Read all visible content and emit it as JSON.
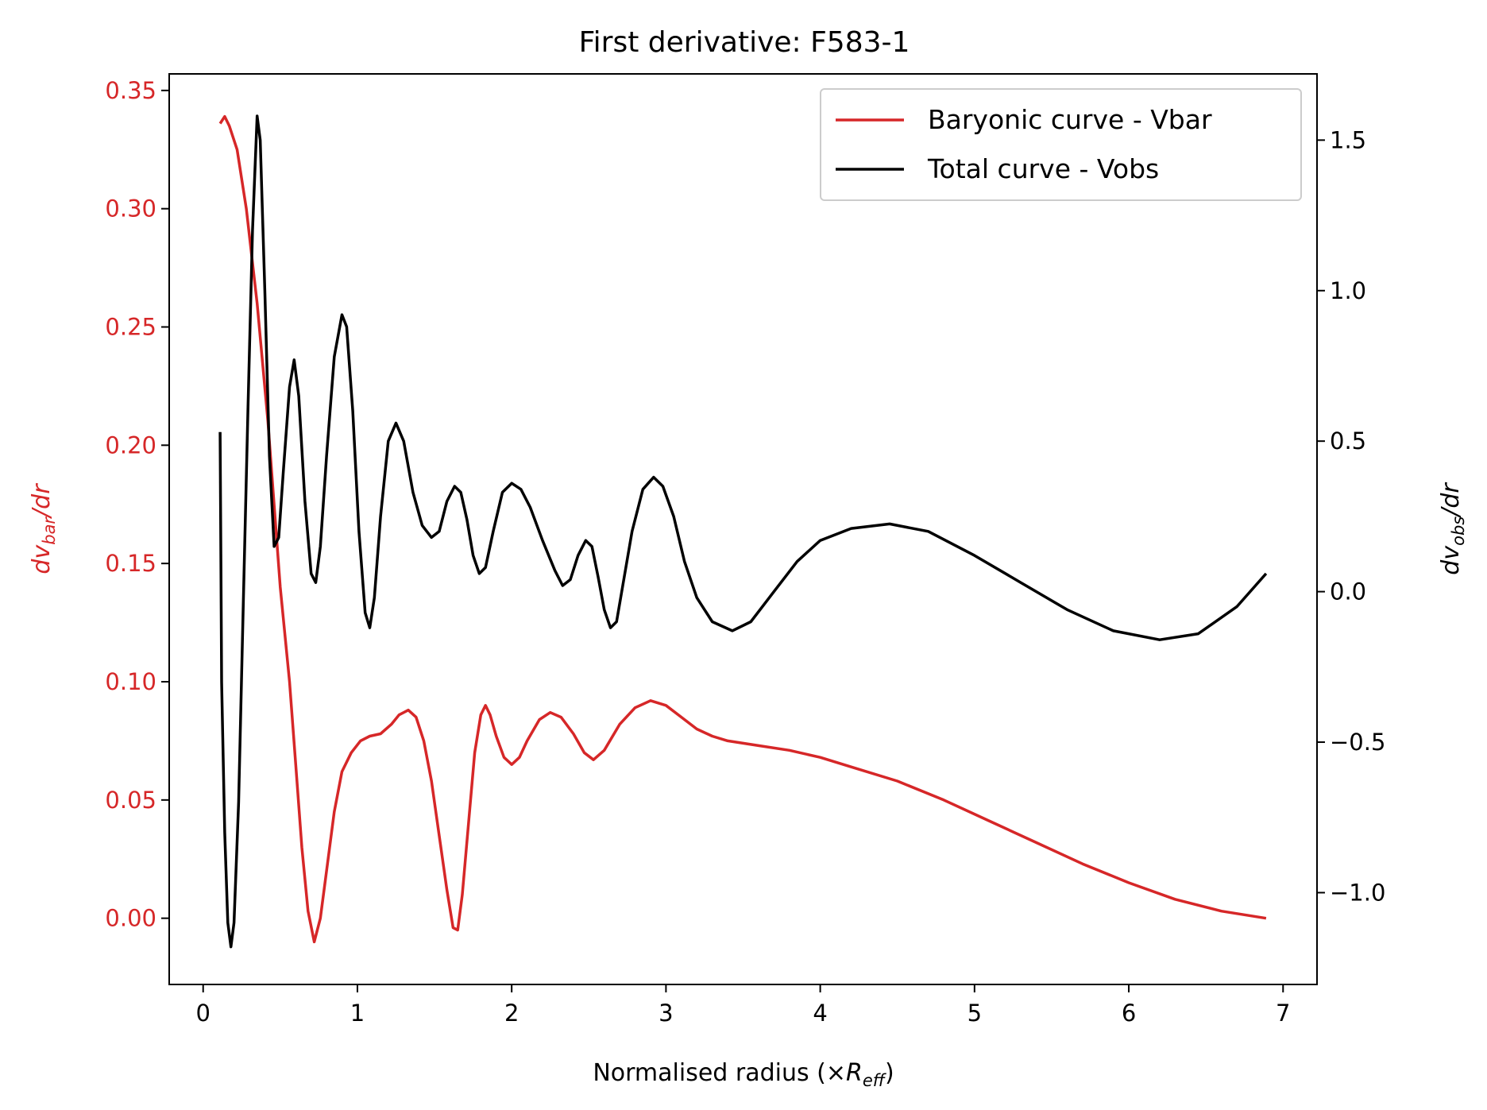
{
  "chart_data": {
    "type": "line",
    "title": "First derivative: F583-1",
    "xlabel": {
      "main": "Normalised radius (×",
      "sym": "R",
      "sub": "eff",
      "end": ")"
    },
    "ylabel_left": {
      "pre": "dv",
      "sub": "bar",
      "post": "/dr"
    },
    "ylabel_right": {
      "pre": "dv",
      "sub": "obs",
      "post": "/dr"
    },
    "xlim": [
      -0.22,
      7.22
    ],
    "ylim_left": [
      -0.028,
      0.357
    ],
    "ylim_right": [
      -1.305,
      1.72
    ],
    "xticks": [
      0,
      1,
      2,
      3,
      4,
      5,
      6,
      7
    ],
    "xtick_labels": [
      "0",
      "1",
      "2",
      "3",
      "4",
      "5",
      "6",
      "7"
    ],
    "yticks_left": [
      0.0,
      0.05,
      0.1,
      0.15,
      0.2,
      0.25,
      0.3,
      0.35
    ],
    "ytick_labels_left": [
      "0.00",
      "0.05",
      "0.10",
      "0.15",
      "0.20",
      "0.25",
      "0.30",
      "0.35"
    ],
    "yticks_right": [
      -1.0,
      -0.5,
      0.0,
      0.5,
      1.0,
      1.5
    ],
    "ytick_labels_right": [
      "−1.0",
      "−0.5",
      "0.0",
      "0.5",
      "1.0",
      "1.5"
    ],
    "grid": false,
    "legend_position": "top-right",
    "colors": {
      "vbar": "#d62728",
      "vobs": "#000000"
    },
    "series": [
      {
        "name": "Baryonic curve - Vbar",
        "axis": "left",
        "color": "#d62728",
        "points": [
          [
            0.11,
            0.336
          ],
          [
            0.14,
            0.339
          ],
          [
            0.17,
            0.335
          ],
          [
            0.22,
            0.325
          ],
          [
            0.28,
            0.3
          ],
          [
            0.35,
            0.26
          ],
          [
            0.42,
            0.21
          ],
          [
            0.5,
            0.14
          ],
          [
            0.56,
            0.1
          ],
          [
            0.6,
            0.065
          ],
          [
            0.64,
            0.03
          ],
          [
            0.68,
            0.003
          ],
          [
            0.72,
            -0.01
          ],
          [
            0.76,
            0.0
          ],
          [
            0.8,
            0.02
          ],
          [
            0.85,
            0.045
          ],
          [
            0.9,
            0.062
          ],
          [
            0.96,
            0.07
          ],
          [
            1.02,
            0.075
          ],
          [
            1.08,
            0.077
          ],
          [
            1.15,
            0.078
          ],
          [
            1.22,
            0.082
          ],
          [
            1.27,
            0.086
          ],
          [
            1.33,
            0.088
          ],
          [
            1.38,
            0.085
          ],
          [
            1.43,
            0.075
          ],
          [
            1.48,
            0.058
          ],
          [
            1.53,
            0.035
          ],
          [
            1.58,
            0.012
          ],
          [
            1.62,
            -0.004
          ],
          [
            1.65,
            -0.005
          ],
          [
            1.68,
            0.01
          ],
          [
            1.72,
            0.04
          ],
          [
            1.76,
            0.07
          ],
          [
            1.8,
            0.086
          ],
          [
            1.83,
            0.09
          ],
          [
            1.86,
            0.086
          ],
          [
            1.9,
            0.077
          ],
          [
            1.95,
            0.068
          ],
          [
            2.0,
            0.065
          ],
          [
            2.05,
            0.068
          ],
          [
            2.1,
            0.075
          ],
          [
            2.18,
            0.084
          ],
          [
            2.25,
            0.087
          ],
          [
            2.32,
            0.085
          ],
          [
            2.4,
            0.078
          ],
          [
            2.47,
            0.07
          ],
          [
            2.53,
            0.067
          ],
          [
            2.6,
            0.071
          ],
          [
            2.7,
            0.082
          ],
          [
            2.8,
            0.089
          ],
          [
            2.9,
            0.092
          ],
          [
            3.0,
            0.09
          ],
          [
            3.1,
            0.085
          ],
          [
            3.2,
            0.08
          ],
          [
            3.3,
            0.077
          ],
          [
            3.4,
            0.075
          ],
          [
            3.6,
            0.073
          ],
          [
            3.8,
            0.071
          ],
          [
            4.0,
            0.068
          ],
          [
            4.2,
            0.064
          ],
          [
            4.5,
            0.058
          ],
          [
            4.8,
            0.05
          ],
          [
            5.1,
            0.041
          ],
          [
            5.4,
            0.032
          ],
          [
            5.7,
            0.023
          ],
          [
            6.0,
            0.015
          ],
          [
            6.3,
            0.008
          ],
          [
            6.6,
            0.003
          ],
          [
            6.89,
            0.0
          ]
        ]
      },
      {
        "name": "Total curve - Vobs",
        "axis": "right",
        "color": "#000000",
        "points": [
          [
            0.11,
            0.53
          ],
          [
            0.115,
            0.1
          ],
          [
            0.12,
            -0.3
          ],
          [
            0.14,
            -0.8
          ],
          [
            0.16,
            -1.1
          ],
          [
            0.18,
            -1.18
          ],
          [
            0.2,
            -1.1
          ],
          [
            0.23,
            -0.7
          ],
          [
            0.26,
            -0.05
          ],
          [
            0.29,
            0.6
          ],
          [
            0.32,
            1.2
          ],
          [
            0.35,
            1.58
          ],
          [
            0.37,
            1.5
          ],
          [
            0.4,
            1.0
          ],
          [
            0.43,
            0.45
          ],
          [
            0.46,
            0.15
          ],
          [
            0.49,
            0.18
          ],
          [
            0.52,
            0.4
          ],
          [
            0.56,
            0.68
          ],
          [
            0.59,
            0.77
          ],
          [
            0.62,
            0.65
          ],
          [
            0.66,
            0.3
          ],
          [
            0.7,
            0.06
          ],
          [
            0.73,
            0.03
          ],
          [
            0.76,
            0.15
          ],
          [
            0.8,
            0.45
          ],
          [
            0.85,
            0.78
          ],
          [
            0.9,
            0.92
          ],
          [
            0.93,
            0.88
          ],
          [
            0.97,
            0.6
          ],
          [
            1.01,
            0.2
          ],
          [
            1.05,
            -0.07
          ],
          [
            1.08,
            -0.12
          ],
          [
            1.11,
            -0.02
          ],
          [
            1.15,
            0.25
          ],
          [
            1.2,
            0.5
          ],
          [
            1.25,
            0.56
          ],
          [
            1.3,
            0.5
          ],
          [
            1.36,
            0.33
          ],
          [
            1.42,
            0.22
          ],
          [
            1.48,
            0.18
          ],
          [
            1.53,
            0.2
          ],
          [
            1.58,
            0.3
          ],
          [
            1.63,
            0.35
          ],
          [
            1.67,
            0.33
          ],
          [
            1.71,
            0.24
          ],
          [
            1.75,
            0.12
          ],
          [
            1.79,
            0.06
          ],
          [
            1.83,
            0.08
          ],
          [
            1.88,
            0.2
          ],
          [
            1.94,
            0.33
          ],
          [
            2.0,
            0.36
          ],
          [
            2.06,
            0.34
          ],
          [
            2.12,
            0.28
          ],
          [
            2.2,
            0.17
          ],
          [
            2.28,
            0.07
          ],
          [
            2.33,
            0.02
          ],
          [
            2.38,
            0.04
          ],
          [
            2.43,
            0.12
          ],
          [
            2.48,
            0.17
          ],
          [
            2.52,
            0.15
          ],
          [
            2.56,
            0.05
          ],
          [
            2.6,
            -0.06
          ],
          [
            2.64,
            -0.12
          ],
          [
            2.68,
            -0.1
          ],
          [
            2.72,
            0.02
          ],
          [
            2.78,
            0.2
          ],
          [
            2.85,
            0.34
          ],
          [
            2.92,
            0.38
          ],
          [
            2.98,
            0.35
          ],
          [
            3.05,
            0.25
          ],
          [
            3.12,
            0.1
          ],
          [
            3.2,
            -0.02
          ],
          [
            3.3,
            -0.1
          ],
          [
            3.43,
            -0.13
          ],
          [
            3.55,
            -0.1
          ],
          [
            3.7,
            0.0
          ],
          [
            3.85,
            0.1
          ],
          [
            4.0,
            0.17
          ],
          [
            4.2,
            0.21
          ],
          [
            4.45,
            0.225
          ],
          [
            4.7,
            0.2
          ],
          [
            5.0,
            0.12
          ],
          [
            5.3,
            0.03
          ],
          [
            5.6,
            -0.06
          ],
          [
            5.9,
            -0.13
          ],
          [
            6.2,
            -0.16
          ],
          [
            6.45,
            -0.14
          ],
          [
            6.7,
            -0.05
          ],
          [
            6.89,
            0.06
          ]
        ]
      }
    ]
  }
}
